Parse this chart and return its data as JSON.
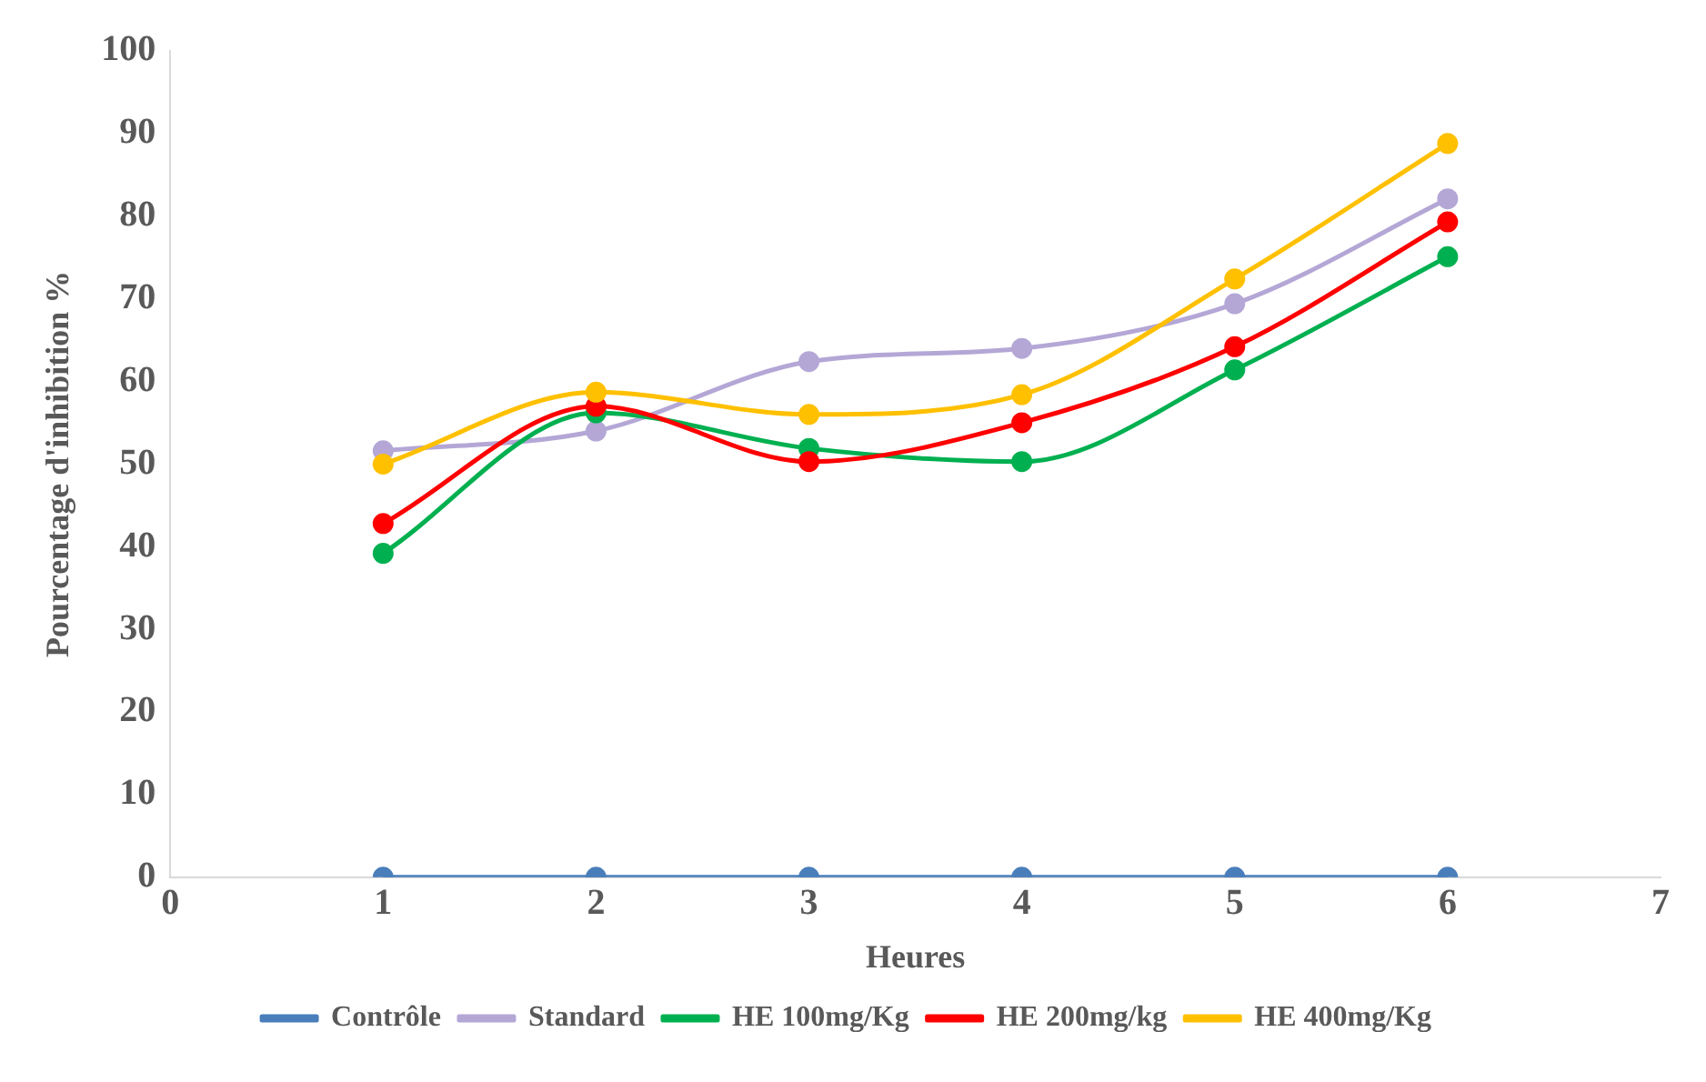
{
  "chart_data": {
    "type": "line",
    "xlabel": "Heures",
    "ylabel": "Pourcentage d'inhibition %",
    "x": [
      1,
      2,
      3,
      4,
      5,
      6
    ],
    "xlim": [
      0,
      7
    ],
    "xticks": [
      0,
      1,
      2,
      3,
      4,
      5,
      6,
      7
    ],
    "ylim": [
      0,
      100
    ],
    "yticks": [
      0,
      10,
      20,
      30,
      40,
      50,
      60,
      70,
      80,
      90,
      100
    ],
    "grid": false,
    "legend": "bottom",
    "marker": "circle",
    "line_style": "solid",
    "series": [
      {
        "name": "Contrôle",
        "color": "#4a7ebb",
        "values": [
          0,
          0,
          0,
          0,
          0,
          0
        ]
      },
      {
        "name": "Standard",
        "color": "#b4a7d6",
        "values": [
          51.6,
          54.0,
          62.4,
          64.0,
          69.4,
          82.1
        ]
      },
      {
        "name": "HE 100mg/Kg",
        "color": "#00b050",
        "values": [
          39.2,
          56.2,
          51.9,
          50.3,
          61.4,
          75.1
        ]
      },
      {
        "name": "HE 200mg/kg",
        "color": "#ff0000",
        "values": [
          42.8,
          57.0,
          50.3,
          55.0,
          64.2,
          79.3
        ]
      },
      {
        "name": "HE 400mg/Kg",
        "color": "#ffc000",
        "values": [
          50.0,
          58.7,
          56.0,
          58.4,
          72.4,
          88.8
        ]
      }
    ]
  }
}
